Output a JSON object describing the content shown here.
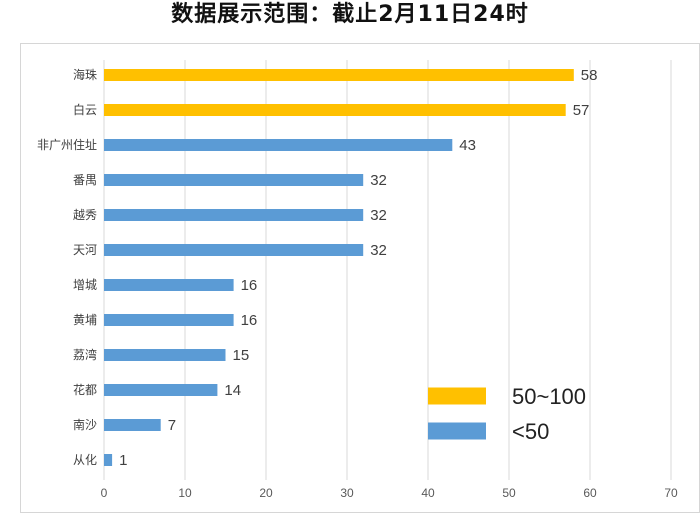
{
  "title": "数据展示范围：截止2月11日24时",
  "colors": {
    "high": "#FFC000",
    "low": "#5B9BD5",
    "grid": "#D9D9D9"
  },
  "chart_data": {
    "type": "bar",
    "orientation": "horizontal",
    "categories": [
      "海珠",
      "白云",
      "非广州住址",
      "番禺",
      "越秀",
      "天河",
      "增城",
      "黄埔",
      "荔湾",
      "花都",
      "南沙",
      "从化"
    ],
    "values": [
      58,
      57,
      43,
      32,
      32,
      32,
      16,
      16,
      15,
      14,
      7,
      1
    ],
    "xlim": [
      0,
      70
    ],
    "xticks": [
      0,
      10,
      20,
      30,
      40,
      50,
      60,
      70
    ],
    "grid": "vertical",
    "legend_position": "bottom-right",
    "legend": [
      {
        "label": "50~100",
        "color": "#FFC000"
      },
      {
        "label": "<50",
        "color": "#5B9BD5"
      }
    ]
  }
}
